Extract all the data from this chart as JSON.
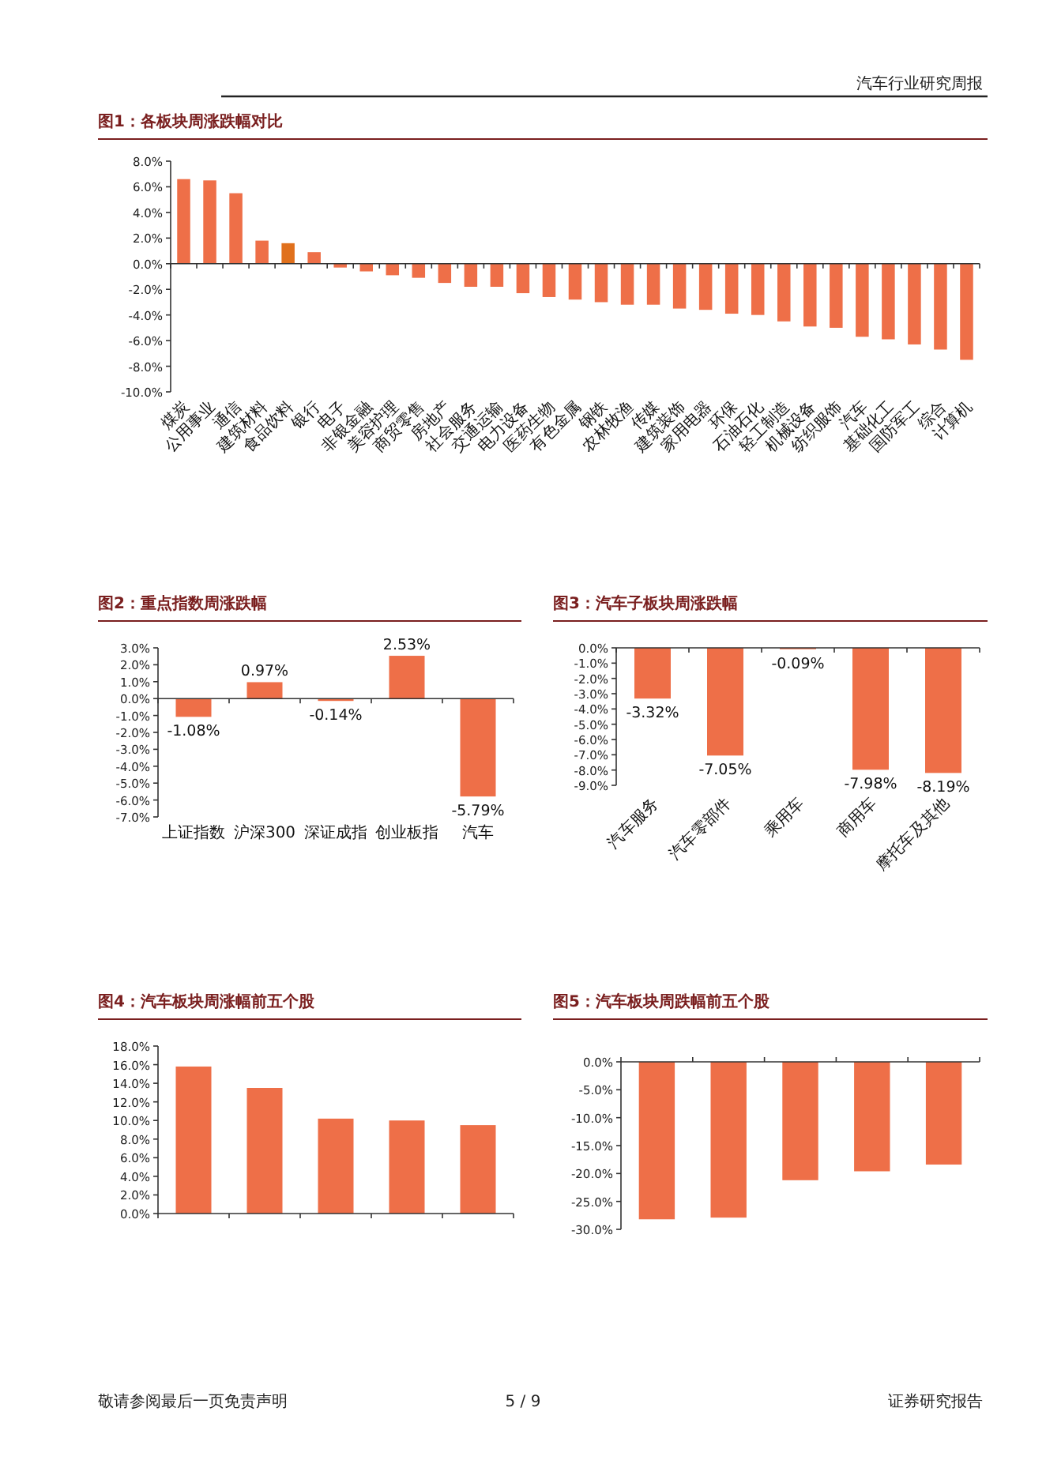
{
  "chart_data": [
    {
      "type": "bar",
      "title": "图1：各板块周涨跌幅对比",
      "annotations": [
        "汽车行业研究周报"
      ],
      "categories": [
        "煤炭",
        "公用事业",
        "通信",
        "建筑材料",
        "食品饮料",
        "银行",
        "电子",
        "非银金融",
        "美容护理",
        "商贸零售",
        "房地产",
        "社会服务",
        "交通运输",
        "电力设备",
        "医药生物",
        "有色金属",
        "钢铁",
        "农林牧渔",
        "传媒",
        "建筑装饰",
        "家用电器",
        "环保",
        "石油石化",
        "轻工制造",
        "机械设备",
        "纺织服饰",
        "汽车",
        "基础化工",
        "国防军工",
        "综合",
        "计算机"
      ],
      "values": [
        6.6,
        6.5,
        5.5,
        1.8,
        1.6,
        0.9,
        -0.3,
        -0.6,
        -0.9,
        -1.1,
        -1.5,
        -1.8,
        -1.8,
        -2.3,
        -2.6,
        -2.8,
        -3.0,
        -3.2,
        -3.2,
        -3.5,
        -3.6,
        -3.9,
        -4.0,
        -4.5,
        -4.9,
        -5.0,
        -5.7,
        -5.9,
        -6.3,
        -6.7,
        -7.5
      ],
      "colors": [
        "#ee6f48",
        "#ee6f48",
        "#ee6f48",
        "#ee6f48",
        "#e0701c",
        "#ee6f48",
        "#ee6f48",
        "#ee6f48",
        "#ee6f48",
        "#ee6f48",
        "#ee6f48",
        "#ee6f48",
        "#ee6f48",
        "#ee6f48",
        "#ee6f48",
        "#ee6f48",
        "#ee6f48",
        "#ee6f48",
        "#ee6f48",
        "#ee6f48",
        "#ee6f48",
        "#ee6f48",
        "#ee6f48",
        "#ee6f48",
        "#ee6f48",
        "#ee6f48",
        "#ee6f48",
        "#ee6f48",
        "#ee6f48",
        "#ee6f48",
        "#ee6f48"
      ],
      "ylim": [
        -10,
        8
      ],
      "yticks": [
        {
          "value": -10,
          "label": "-10.0%"
        },
        {
          "value": -8,
          "label": "-8.0%"
        },
        {
          "value": -6,
          "label": "-6.0%"
        },
        {
          "value": -4,
          "label": "-4.0%"
        },
        {
          "value": -2,
          "label": "-2.0%"
        },
        {
          "value": 0,
          "label": "0.0%"
        },
        {
          "value": 2,
          "label": "2.0%"
        },
        {
          "value": 4,
          "label": "4.0%"
        },
        {
          "value": 6,
          "label": "6.0%"
        },
        {
          "value": 8,
          "label": "8.0%"
        }
      ]
    },
    {
      "type": "bar",
      "title": "图2：重点指数周涨跌幅",
      "categories": [
        "上证指数",
        "沪深300",
        "深证成指",
        "创业板指",
        "汽车"
      ],
      "values": [
        -1.08,
        0.97,
        -0.14,
        2.53,
        -5.79
      ],
      "color": "#ee6f48",
      "value_labels": [
        "-1.08%",
        "0.97%",
        "-0.14%",
        "2.53%",
        "-5.79%"
      ],
      "ylim": [
        -7,
        3
      ],
      "yticks": [
        {
          "value": -7,
          "label": "-7.0%"
        },
        {
          "value": -6,
          "label": "-6.0%"
        },
        {
          "value": -5,
          "label": "-5.0%"
        },
        {
          "value": -4,
          "label": "-4.0%"
        },
        {
          "value": -3,
          "label": "-3.0%"
        },
        {
          "value": -2,
          "label": "-2.0%"
        },
        {
          "value": -1,
          "label": "-1.0%"
        },
        {
          "value": 0,
          "label": "0.0%"
        },
        {
          "value": 1,
          "label": "1.0%"
        },
        {
          "value": 2,
          "label": "2.0%"
        },
        {
          "value": 3,
          "label": "3.0%"
        }
      ]
    },
    {
      "type": "bar",
      "title": "图3：汽车子板块周涨跌幅",
      "categories": [
        "汽车服务",
        "汽车零部件",
        "乘用车",
        "商用车",
        "摩托车及其他"
      ],
      "values": [
        -3.32,
        -7.05,
        -0.09,
        -7.98,
        -8.19
      ],
      "color": "#ee6f48",
      "value_labels": [
        "-3.32%",
        "-7.05%",
        "-0.09%",
        "-7.98%",
        "-8.19%"
      ],
      "ylim": [
        -9,
        0
      ],
      "yticks": [
        {
          "value": -9,
          "label": "-9.0%"
        },
        {
          "value": -8,
          "label": "-8.0%"
        },
        {
          "value": -7,
          "label": "-7.0%"
        },
        {
          "value": -6,
          "label": "-6.0%"
        },
        {
          "value": -5,
          "label": "-5.0%"
        },
        {
          "value": -4,
          "label": "-4.0%"
        },
        {
          "value": -3,
          "label": "-3.0%"
        },
        {
          "value": -2,
          "label": "-2.0%"
        },
        {
          "value": -1,
          "label": "-1.0%"
        },
        {
          "value": 0,
          "label": "0.0%"
        }
      ]
    },
    {
      "type": "bar",
      "title": "图4：汽车板块周涨幅前五个股",
      "categories": [
        null,
        null,
        null,
        null,
        null
      ],
      "values": [
        15.8,
        13.5,
        10.2,
        10.0,
        9.5
      ],
      "color": "#ee6f48",
      "tick_labels": "y",
      "ylim": [
        0,
        18
      ],
      "yticks": [
        {
          "value": 0,
          "label": "0.0%"
        },
        {
          "value": 2,
          "label": "2.0%"
        },
        {
          "value": 4,
          "label": "4.0%"
        },
        {
          "value": 6,
          "label": "6.0%"
        },
        {
          "value": 8,
          "label": "8.0%"
        },
        {
          "value": 10,
          "label": "10.0%"
        },
        {
          "value": 12,
          "label": "12.0%"
        },
        {
          "value": 14,
          "label": "14.0%"
        },
        {
          "value": 16,
          "label": "16.0%"
        },
        {
          "value": 18,
          "label": "18.0%"
        }
      ]
    },
    {
      "type": "bar",
      "title": "图5：汽车板块周跌幅前五个股",
      "annotations": [
        "敬请参阅最后一页免责声明",
        "5 / 9",
        "证券研究报告"
      ],
      "categories": [
        null,
        null,
        null,
        null,
        null
      ],
      "values": [
        -28.2,
        -27.9,
        -21.2,
        -19.6,
        -18.4
      ],
      "color": "#ee6f48",
      "tick_labels": "y",
      "ylim": [
        -30,
        0
      ],
      "yticks": [
        {
          "value": -30,
          "label": "-30.0%"
        },
        {
          "value": -25,
          "label": "-25.0%"
        },
        {
          "value": -20,
          "label": "-20.0%"
        },
        {
          "value": -15,
          "label": "-15.0%"
        },
        {
          "value": -10,
          "label": "-10.0%"
        },
        {
          "value": -5,
          "label": "-5.0%"
        },
        {
          "value": 0,
          "label": "0.0%"
        }
      ]
    }
  ]
}
